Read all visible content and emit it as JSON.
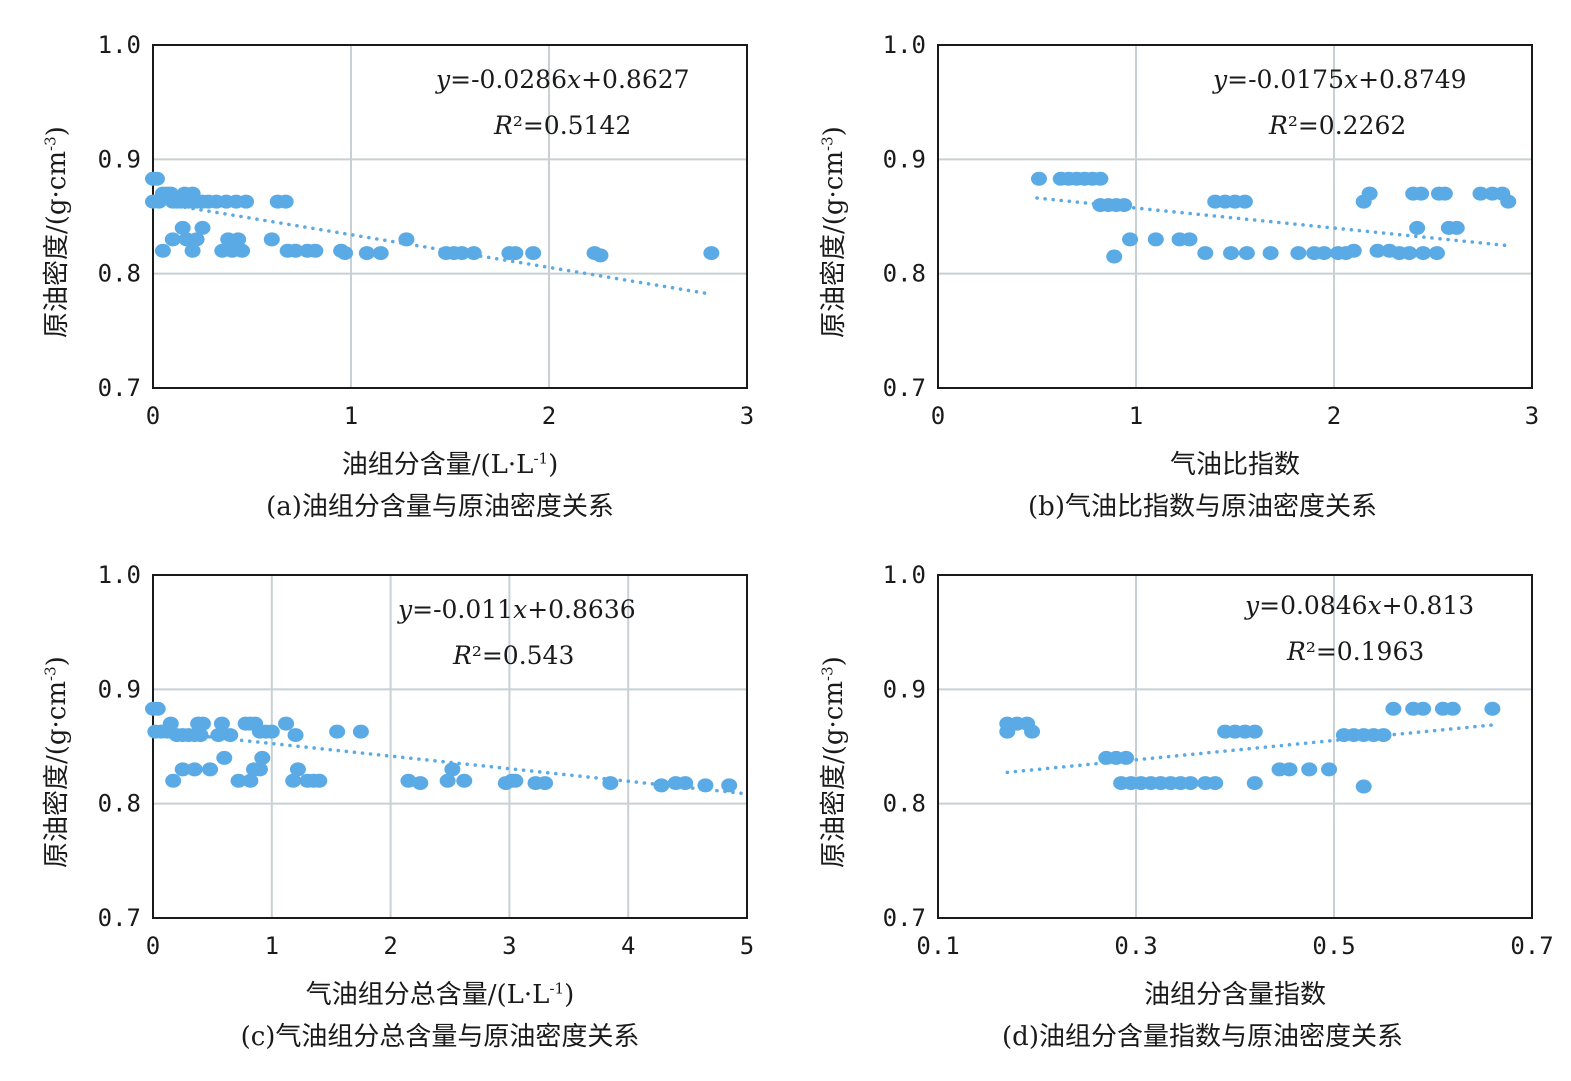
{
  "colors": {
    "points": "#5aaae6",
    "grid": "#c8d0d4",
    "axes": "#1a1a1a"
  },
  "chart_data": [
    {
      "type": "scatter",
      "caption": "(a)油组分含量与原油密度关系",
      "xlabel": "油组分含量/(L·L",
      "xlabel_sup": "-1",
      "xlabel_tail": ")",
      "ylabel": "原油密度/(g·cm",
      "ylabel_sup": "-3",
      "ylabel_tail": ")",
      "xlim": [
        0,
        3
      ],
      "ylim": [
        0.7,
        1.0
      ],
      "xticks": [
        0,
        1,
        2,
        3
      ],
      "xtick_labels": [
        "0",
        "1",
        "2",
        "3"
      ],
      "yticks": [
        0.7,
        0.8,
        0.9,
        1.0
      ],
      "ytick_labels": [
        "0.7",
        "0.8",
        "0.9",
        "1.0"
      ],
      "equation": "y=-0.0286x+0.8627",
      "r2": "R²=0.5142",
      "trend": {
        "slope": -0.0286,
        "intercept": 0.8627,
        "x_range": [
          0,
          2.8
        ]
      },
      "points": [
        [
          0.0,
          0.883
        ],
        [
          0.02,
          0.883
        ],
        [
          0.0,
          0.863
        ],
        [
          0.03,
          0.863
        ],
        [
          0.05,
          0.87
        ],
        [
          0.07,
          0.87
        ],
        [
          0.09,
          0.87
        ],
        [
          0.1,
          0.863
        ],
        [
          0.12,
          0.863
        ],
        [
          0.14,
          0.863
        ],
        [
          0.16,
          0.87
        ],
        [
          0.18,
          0.863
        ],
        [
          0.2,
          0.87
        ],
        [
          0.22,
          0.863
        ],
        [
          0.25,
          0.863
        ],
        [
          0.28,
          0.863
        ],
        [
          0.32,
          0.863
        ],
        [
          0.37,
          0.863
        ],
        [
          0.42,
          0.863
        ],
        [
          0.47,
          0.863
        ],
        [
          0.63,
          0.863
        ],
        [
          0.67,
          0.863
        ],
        [
          0.05,
          0.82
        ],
        [
          0.1,
          0.83
        ],
        [
          0.15,
          0.84
        ],
        [
          0.17,
          0.83
        ],
        [
          0.2,
          0.82
        ],
        [
          0.22,
          0.83
        ],
        [
          0.25,
          0.84
        ],
        [
          0.35,
          0.82
        ],
        [
          0.38,
          0.83
        ],
        [
          0.4,
          0.82
        ],
        [
          0.43,
          0.83
        ],
        [
          0.45,
          0.82
        ],
        [
          0.6,
          0.83
        ],
        [
          0.68,
          0.82
        ],
        [
          0.72,
          0.82
        ],
        [
          0.78,
          0.82
        ],
        [
          0.82,
          0.82
        ],
        [
          0.95,
          0.82
        ],
        [
          0.97,
          0.818
        ],
        [
          1.08,
          0.818
        ],
        [
          1.15,
          0.818
        ],
        [
          1.28,
          0.83
        ],
        [
          1.48,
          0.818
        ],
        [
          1.52,
          0.818
        ],
        [
          1.56,
          0.818
        ],
        [
          1.62,
          0.818
        ],
        [
          1.8,
          0.818
        ],
        [
          1.83,
          0.818
        ],
        [
          1.92,
          0.818
        ],
        [
          2.23,
          0.818
        ],
        [
          2.26,
          0.816
        ],
        [
          2.82,
          0.818
        ]
      ]
    },
    {
      "type": "scatter",
      "caption": "(b)气油比指数与原油密度关系",
      "xlabel": "气油比指数",
      "xlabel_sup": "",
      "xlabel_tail": "",
      "ylabel": "原油密度/(g·cm",
      "ylabel_sup": "-3",
      "ylabel_tail": ")",
      "xlim": [
        0,
        3
      ],
      "ylim": [
        0.7,
        1.0
      ],
      "xticks": [
        0,
        1,
        2,
        3
      ],
      "xtick_labels": [
        "0",
        "1",
        "2",
        "3"
      ],
      "yticks": [
        0.7,
        0.8,
        0.9,
        1.0
      ],
      "ytick_labels": [
        "0.7",
        "0.8",
        "0.9",
        "1.0"
      ],
      "equation": "y=-0.0175x+0.8749",
      "r2": "R²=0.2262",
      "trend": {
        "slope": -0.0175,
        "intercept": 0.8749,
        "x_range": [
          0.5,
          2.9
        ]
      },
      "points": [
        [
          0.51,
          0.883
        ],
        [
          0.62,
          0.883
        ],
        [
          0.66,
          0.883
        ],
        [
          0.7,
          0.883
        ],
        [
          0.74,
          0.883
        ],
        [
          0.78,
          0.883
        ],
        [
          0.82,
          0.883
        ],
        [
          0.82,
          0.86
        ],
        [
          0.86,
          0.86
        ],
        [
          0.9,
          0.86
        ],
        [
          0.94,
          0.86
        ],
        [
          0.89,
          0.815
        ],
        [
          0.97,
          0.83
        ],
        [
          1.1,
          0.83
        ],
        [
          1.22,
          0.83
        ],
        [
          1.27,
          0.83
        ],
        [
          1.35,
          0.818
        ],
        [
          1.45,
          0.863
        ],
        [
          1.5,
          0.863
        ],
        [
          1.55,
          0.863
        ],
        [
          1.4,
          0.863
        ],
        [
          1.48,
          0.818
        ],
        [
          1.56,
          0.818
        ],
        [
          1.68,
          0.818
        ],
        [
          1.82,
          0.818
        ],
        [
          1.9,
          0.818
        ],
        [
          1.95,
          0.818
        ],
        [
          2.02,
          0.818
        ],
        [
          2.06,
          0.818
        ],
        [
          2.1,
          0.82
        ],
        [
          2.15,
          0.863
        ],
        [
          2.18,
          0.87
        ],
        [
          2.22,
          0.82
        ],
        [
          2.28,
          0.82
        ],
        [
          2.33,
          0.818
        ],
        [
          2.38,
          0.818
        ],
        [
          2.42,
          0.84
        ],
        [
          2.45,
          0.818
        ],
        [
          2.4,
          0.87
        ],
        [
          2.44,
          0.87
        ],
        [
          2.52,
          0.818
        ],
        [
          2.53,
          0.87
        ],
        [
          2.56,
          0.87
        ],
        [
          2.58,
          0.84
        ],
        [
          2.62,
          0.84
        ],
        [
          2.74,
          0.87
        ],
        [
          2.8,
          0.87
        ],
        [
          2.85,
          0.87
        ],
        [
          2.88,
          0.863
        ]
      ]
    },
    {
      "type": "scatter",
      "caption": "(c)气油组分总含量与原油密度关系",
      "xlabel": "气油组分总含量/(L·L",
      "xlabel_sup": "-1",
      "xlabel_tail": ")",
      "ylabel": "原油密度/(g·cm",
      "ylabel_sup": "-3",
      "ylabel_tail": ")",
      "xlim": [
        0,
        5
      ],
      "ylim": [
        0.7,
        1.0
      ],
      "xticks": [
        0,
        1,
        2,
        3,
        4,
        5
      ],
      "xtick_labels": [
        "0",
        "1",
        "2",
        "3",
        "4",
        "5"
      ],
      "yticks": [
        0.7,
        0.8,
        0.9,
        1.0
      ],
      "ytick_labels": [
        "0.7",
        "0.8",
        "0.9",
        "1.0"
      ],
      "equation": "y=-0.011x+0.8636",
      "r2": "R²=0.543",
      "trend": {
        "slope": -0.011,
        "intercept": 0.8636,
        "x_range": [
          0,
          4.95
        ]
      },
      "points": [
        [
          0.0,
          0.883
        ],
        [
          0.04,
          0.883
        ],
        [
          0.02,
          0.863
        ],
        [
          0.07,
          0.863
        ],
        [
          0.12,
          0.863
        ],
        [
          0.15,
          0.87
        ],
        [
          0.2,
          0.86
        ],
        [
          0.25,
          0.86
        ],
        [
          0.3,
          0.86
        ],
        [
          0.35,
          0.86
        ],
        [
          0.38,
          0.87
        ],
        [
          0.42,
          0.87
        ],
        [
          0.4,
          0.86
        ],
        [
          0.55,
          0.86
        ],
        [
          0.58,
          0.87
        ],
        [
          0.65,
          0.86
        ],
        [
          0.78,
          0.87
        ],
        [
          0.82,
          0.87
        ],
        [
          0.86,
          0.87
        ],
        [
          0.9,
          0.863
        ],
        [
          0.95,
          0.863
        ],
        [
          1.0,
          0.863
        ],
        [
          1.12,
          0.87
        ],
        [
          1.2,
          0.86
        ],
        [
          0.17,
          0.82
        ],
        [
          0.25,
          0.83
        ],
        [
          0.35,
          0.83
        ],
        [
          0.48,
          0.83
        ],
        [
          0.6,
          0.84
        ],
        [
          0.72,
          0.82
        ],
        [
          0.82,
          0.82
        ],
        [
          0.85,
          0.83
        ],
        [
          0.9,
          0.83
        ],
        [
          0.92,
          0.84
        ],
        [
          1.18,
          0.82
        ],
        [
          1.22,
          0.83
        ],
        [
          1.3,
          0.82
        ],
        [
          1.35,
          0.82
        ],
        [
          1.4,
          0.82
        ],
        [
          1.55,
          0.863
        ],
        [
          1.75,
          0.863
        ],
        [
          2.15,
          0.82
        ],
        [
          2.25,
          0.818
        ],
        [
          2.48,
          0.82
        ],
        [
          2.52,
          0.83
        ],
        [
          2.62,
          0.82
        ],
        [
          2.97,
          0.818
        ],
        [
          3.02,
          0.82
        ],
        [
          3.05,
          0.82
        ],
        [
          3.22,
          0.818
        ],
        [
          3.3,
          0.818
        ],
        [
          3.85,
          0.818
        ],
        [
          4.28,
          0.816
        ],
        [
          4.4,
          0.818
        ],
        [
          4.48,
          0.818
        ],
        [
          4.65,
          0.816
        ],
        [
          4.85,
          0.816
        ]
      ]
    },
    {
      "type": "scatter",
      "caption": "(d)油组分含量指数与原油密度关系",
      "xlabel": "油组分含量指数",
      "xlabel_sup": "",
      "xlabel_tail": "",
      "ylabel": "原油密度/(g·cm",
      "ylabel_sup": "-3",
      "ylabel_tail": ")",
      "xlim": [
        0.1,
        0.7
      ],
      "ylim": [
        0.7,
        1.0
      ],
      "xticks": [
        0.1,
        0.3,
        0.5,
        0.7
      ],
      "xtick_labels": [
        "0.1",
        "0.3",
        "0.5",
        "0.7"
      ],
      "yticks": [
        0.7,
        0.8,
        0.9,
        1.0
      ],
      "ytick_labels": [
        "0.7",
        "0.8",
        "0.9",
        "1.0"
      ],
      "equation": "y=0.0846x+0.813",
      "r2": "R²=0.1963",
      "trend": {
        "slope": 0.0846,
        "intercept": 0.813,
        "x_range": [
          0.17,
          0.66
        ]
      },
      "points": [
        [
          0.17,
          0.87
        ],
        [
          0.18,
          0.87
        ],
        [
          0.19,
          0.87
        ],
        [
          0.17,
          0.863
        ],
        [
          0.195,
          0.863
        ],
        [
          0.27,
          0.84
        ],
        [
          0.28,
          0.84
        ],
        [
          0.29,
          0.84
        ],
        [
          0.285,
          0.818
        ],
        [
          0.295,
          0.818
        ],
        [
          0.305,
          0.818
        ],
        [
          0.315,
          0.818
        ],
        [
          0.325,
          0.818
        ],
        [
          0.335,
          0.818
        ],
        [
          0.345,
          0.818
        ],
        [
          0.355,
          0.818
        ],
        [
          0.37,
          0.818
        ],
        [
          0.38,
          0.818
        ],
        [
          0.39,
          0.863
        ],
        [
          0.4,
          0.863
        ],
        [
          0.41,
          0.863
        ],
        [
          0.42,
          0.863
        ],
        [
          0.42,
          0.818
        ],
        [
          0.445,
          0.83
        ],
        [
          0.455,
          0.83
        ],
        [
          0.475,
          0.83
        ],
        [
          0.495,
          0.83
        ],
        [
          0.51,
          0.86
        ],
        [
          0.52,
          0.86
        ],
        [
          0.53,
          0.86
        ],
        [
          0.54,
          0.86
        ],
        [
          0.55,
          0.86
        ],
        [
          0.53,
          0.815
        ],
        [
          0.56,
          0.883
        ],
        [
          0.58,
          0.883
        ],
        [
          0.59,
          0.883
        ],
        [
          0.61,
          0.883
        ],
        [
          0.62,
          0.883
        ],
        [
          0.66,
          0.883
        ]
      ]
    }
  ]
}
